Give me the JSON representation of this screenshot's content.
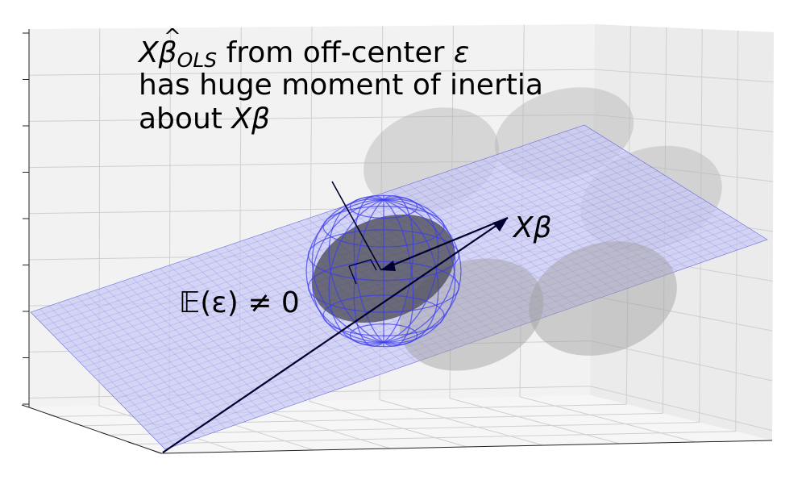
{
  "annotation": {
    "line1_var": "X",
    "line1_beta": "β",
    "line1_sub": "OLS",
    "line1_mid": " from off-center ",
    "line1_eps": "ε",
    "line2": "has huge moment of inertia",
    "line3_pre": "about ",
    "line3_var": "Xβ"
  },
  "labels": {
    "xbeta": "Xβ",
    "expectation_E": "𝔼",
    "expectation_rest": "(ε) ≠ 0"
  },
  "colors": {
    "plane_fill": "#c8c8f5",
    "plane_grid": "#3d3dd6",
    "sphere_wire": "#3a3aee",
    "shadow_ellipse": "#b4b4b4",
    "dark_ellipse": "#555555",
    "vector": "#000030",
    "pane_back": "#f2f2f2",
    "pane_side": "#ebebeb",
    "pane_floor": "#f6f6f6",
    "axis_grid": "#cfcfcf"
  }
}
